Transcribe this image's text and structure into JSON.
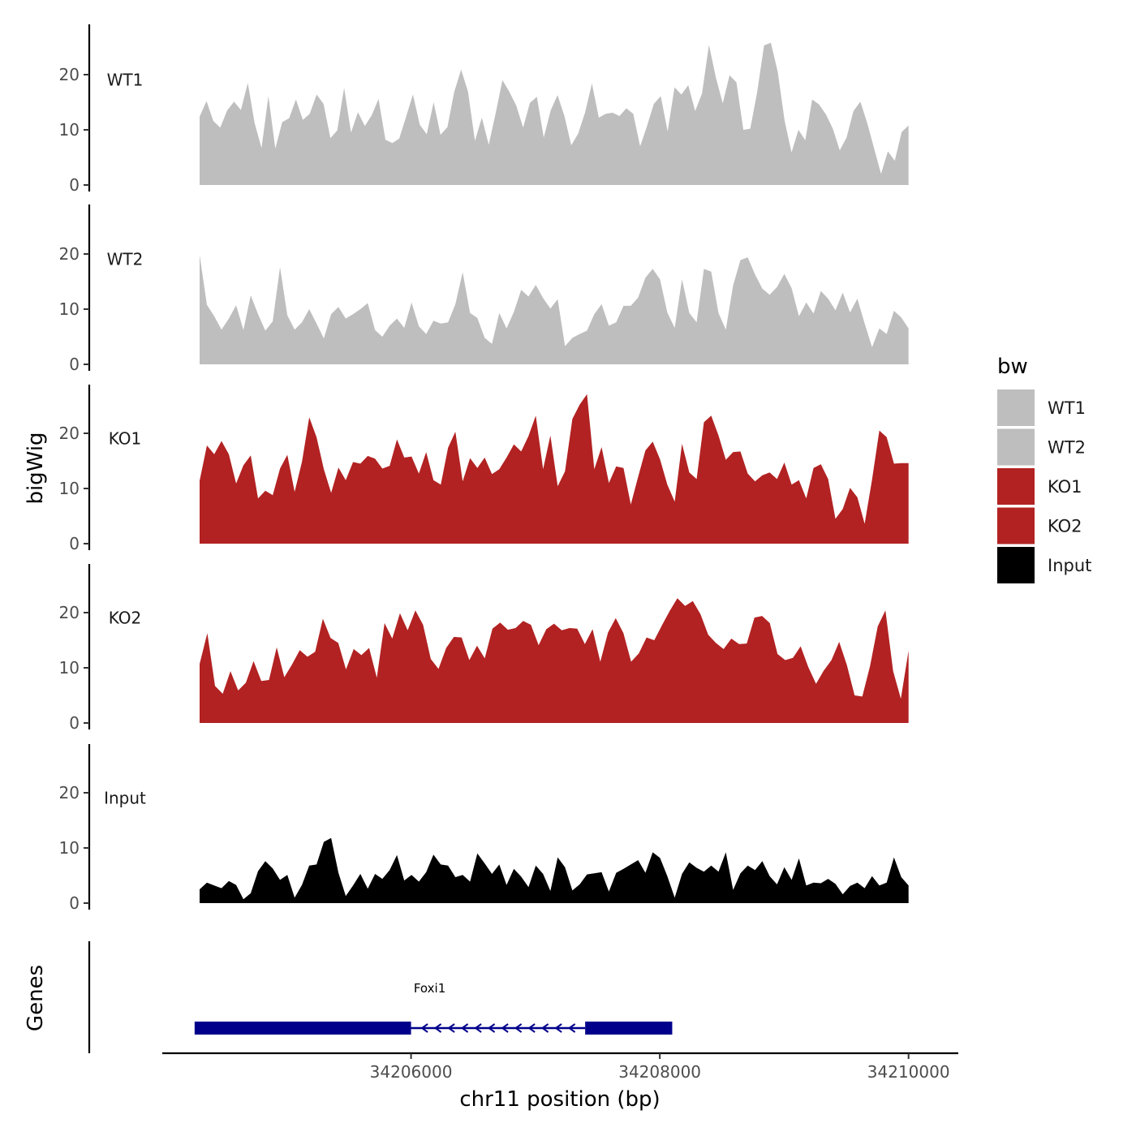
{
  "chart_data": {
    "type": "area",
    "ylabel": "bigWig",
    "xlabel": "chr11 position (bp)",
    "gene_track_label": "Genes",
    "legend_title": "bw",
    "xlim": [
      34204000,
      34210400
    ],
    "x_ticks": [
      34206000,
      34208000,
      34210000
    ],
    "x_tick_labels": [
      "34206000",
      "34208000",
      "34210000"
    ],
    "ylim": [
      0,
      29
    ],
    "y_ticks": [
      0,
      10,
      20
    ],
    "y_tick_labels": [
      "0",
      "10",
      "20"
    ],
    "x_start": 34204300,
    "x_end": 34210000,
    "series": [
      {
        "name": "WT1",
        "color": "#bebebe",
        "values": [
          12.4,
          15.2,
          11.6,
          10.4,
          13.5,
          15.1,
          13.6,
          18.5,
          11.2,
          6.7,
          16.1,
          6.6,
          11.4,
          12.1,
          15.5,
          11.8,
          12.9,
          16.4,
          14.7,
          8.5,
          9.9,
          17.6,
          9.5,
          13.2,
          10.7,
          12.6,
          15.6,
          8.2,
          7.6,
          8.4,
          12.4,
          16.4,
          10.9,
          9.2,
          15.0,
          9.1,
          10.5,
          16.9,
          20.9,
          16.9,
          8.0,
          12.2,
          7.3,
          12.9,
          19.0,
          16.9,
          14.4,
          10.4,
          14.9,
          16.0,
          8.6,
          13.5,
          16.3,
          12.5,
          7.2,
          9.3,
          13.1,
          18.4,
          12.2,
          12.9,
          13.1,
          12.5,
          13.9,
          12.9,
          7.0,
          10.7,
          14.7,
          16.1,
          9.7,
          17.7,
          16.4,
          18.1,
          13.4,
          16.6,
          25.4,
          19.5,
          14.8,
          19.9,
          18.6,
          10.0,
          10.2,
          16.8,
          25.3,
          25.8,
          20.5,
          11.6,
          5.9,
          10.0,
          8.1,
          15.5,
          14.6,
          12.8,
          10.2,
          6.3,
          8.6,
          13.4,
          15.1,
          11.2,
          6.6,
          2.0,
          6.1,
          4.4,
          9.6,
          10.8
        ]
      },
      {
        "name": "WT2",
        "color": "#bebebe",
        "values": [
          19.8,
          10.8,
          8.7,
          6.3,
          8.3,
          10.7,
          6.2,
          12.5,
          9.1,
          6.1,
          7.8,
          17.6,
          8.9,
          6.3,
          7.6,
          10.0,
          7.4,
          4.7,
          9.1,
          10.4,
          8.3,
          9.1,
          10.0,
          11.1,
          6.2,
          5.0,
          7.0,
          8.3,
          6.6,
          11.2,
          6.9,
          5.5,
          7.9,
          7.4,
          7.6,
          10.9,
          16.7,
          9.3,
          8.4,
          4.8,
          3.7,
          9.3,
          6.5,
          9.5,
          13.5,
          12.3,
          14.4,
          12.0,
          10.1,
          11.8,
          3.3,
          4.8,
          5.5,
          6.1,
          9.1,
          10.9,
          7.0,
          7.6,
          10.6,
          10.6,
          12.1,
          15.7,
          17.3,
          15.4,
          9.4,
          6.6,
          15.4,
          9.3,
          7.6,
          17.3,
          16.8,
          9.3,
          6.3,
          14.3,
          18.9,
          19.4,
          16.3,
          13.7,
          12.6,
          14.0,
          16.4,
          13.8,
          8.7,
          11.2,
          9.2,
          13.3,
          11.9,
          9.8,
          13.0,
          9.4,
          11.9,
          7.4,
          3.1,
          6.5,
          5.5,
          9.7,
          8.5,
          6.5
        ]
      },
      {
        "name": "KO1",
        "color": "#b22222",
        "values": [
          11.4,
          17.8,
          16.2,
          18.6,
          16.2,
          10.9,
          14.2,
          16.0,
          8.2,
          9.6,
          8.8,
          13.6,
          16.1,
          9.4,
          14.8,
          22.9,
          19.3,
          13.5,
          9.2,
          13.8,
          11.5,
          14.8,
          14.5,
          15.9,
          15.4,
          13.6,
          14.1,
          18.9,
          15.6,
          15.8,
          12.7,
          16.6,
          11.5,
          10.7,
          17.4,
          20.3,
          11.3,
          15.5,
          13.7,
          15.6,
          12.6,
          13.5,
          15.6,
          18.0,
          16.7,
          19.5,
          23.2,
          13.5,
          19.6,
          10.4,
          13.1,
          22.6,
          25.2,
          27.1,
          13.5,
          17.5,
          11.0,
          14.0,
          13.7,
          7.1,
          12.1,
          16.9,
          18.5,
          15.3,
          10.7,
          7.6,
          18.1,
          12.9,
          11.7,
          22.0,
          23.2,
          19.6,
          15.2,
          16.6,
          16.7,
          12.7,
          11.3,
          12.4,
          12.9,
          11.7,
          14.7,
          10.7,
          11.5,
          8.2,
          13.7,
          14.4,
          11.7,
          4.5,
          6.3,
          10.1,
          8.4,
          3.6,
          11.6,
          20.5,
          19.3,
          14.5,
          14.6,
          14.6
        ]
      },
      {
        "name": "KO2",
        "color": "#b22222",
        "values": [
          10.7,
          16.3,
          6.7,
          5.3,
          9.4,
          5.9,
          7.3,
          11.2,
          7.6,
          7.8,
          13.7,
          8.3,
          10.6,
          13.2,
          12.0,
          12.9,
          18.9,
          15.4,
          14.5,
          9.7,
          13.4,
          12.3,
          13.6,
          8.2,
          18.1,
          15.3,
          19.9,
          16.8,
          20.4,
          17.8,
          11.6,
          9.8,
          13.6,
          15.6,
          15.5,
          11.4,
          14.0,
          11.7,
          17.1,
          18.2,
          16.9,
          17.2,
          18.5,
          17.8,
          14.1,
          17.0,
          18.0,
          16.8,
          17.2,
          17.1,
          14.3,
          17.0,
          11.1,
          16.4,
          19.0,
          16.3,
          11.1,
          12.6,
          15.5,
          15.0,
          17.7,
          20.3,
          22.6,
          21.2,
          22.1,
          19.7,
          16.0,
          14.5,
          13.4,
          15.3,
          14.3,
          14.4,
          19.1,
          19.4,
          18.1,
          12.5,
          11.4,
          11.8,
          13.9,
          10.1,
          7.1,
          9.5,
          11.4,
          14.7,
          10.5,
          5.0,
          4.8,
          10.3,
          17.5,
          20.4,
          9.4,
          4.4,
          13.1
        ]
      },
      {
        "name": "Input",
        "color": "#000000",
        "values": [
          2.5,
          3.7,
          3.2,
          2.7,
          4.0,
          3.3,
          0.7,
          1.8,
          5.8,
          7.6,
          6.3,
          4.2,
          5.1,
          1.0,
          3.3,
          6.8,
          7.0,
          11.1,
          11.8,
          5.5,
          1.3,
          3.2,
          5.3,
          2.6,
          5.3,
          4.4,
          6.0,
          8.7,
          4.1,
          5.1,
          3.9,
          5.6,
          8.8,
          7.0,
          6.8,
          4.7,
          5.1,
          3.9,
          9.0,
          7.2,
          5.3,
          7.0,
          3.3,
          6.2,
          4.8,
          2.9,
          6.8,
          5.3,
          2.2,
          8.3,
          6.5,
          2.3,
          3.4,
          5.2,
          5.4,
          5.6,
          2.1,
          5.5,
          6.2,
          7.0,
          7.8,
          5.5,
          9.2,
          8.2,
          4.9,
          1.0,
          5.3,
          7.4,
          6.4,
          5.7,
          6.8,
          5.7,
          9.2,
          2.4,
          5.4,
          6.8,
          6.0,
          7.6,
          4.9,
          3.4,
          6.5,
          4.2,
          8.1,
          3.2,
          3.7,
          3.6,
          4.4,
          3.5,
          1.6,
          3.1,
          3.7,
          2.7,
          4.9,
          3.2,
          3.7,
          8.3,
          4.7,
          3.2
        ]
      }
    ],
    "gene": {
      "name": "Foxi1",
      "color": "#00008b",
      "strand": "-",
      "start": 34204260,
      "end": 34208100,
      "exons": [
        [
          34204260,
          34206000
        ],
        [
          34207400,
          34208100
        ]
      ],
      "intron": [
        34206000,
        34207400
      ]
    }
  }
}
